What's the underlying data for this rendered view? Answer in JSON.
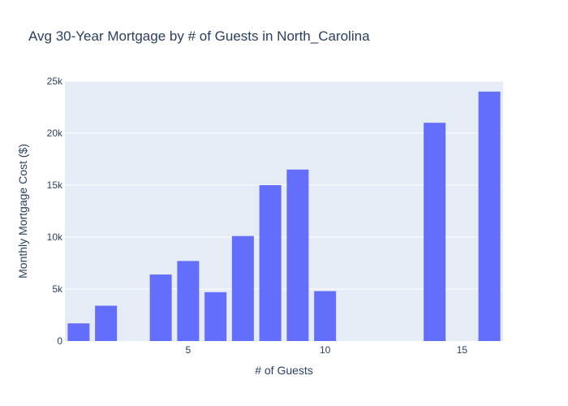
{
  "chart_data": {
    "type": "bar",
    "title": "Avg 30-Year Mortgage by # of Guests in North_Carolina",
    "xlabel": "# of Guests",
    "ylabel": "Monthly Mortgage Cost ($)",
    "x": [
      1,
      2,
      4,
      5,
      6,
      7,
      8,
      9,
      10,
      14,
      16
    ],
    "values": [
      1700,
      3400,
      6400,
      7700,
      4700,
      10100,
      15000,
      16500,
      4800,
      21000,
      24000
    ],
    "xlim": [
      0.5,
      16.5
    ],
    "ylim": [
      0,
      25000
    ],
    "xticks": [
      5,
      10,
      15
    ],
    "xtick_labels": [
      "5",
      "10",
      "15"
    ],
    "yticks": [
      0,
      5000,
      10000,
      15000,
      20000,
      25000
    ],
    "ytick_labels": [
      "0",
      "5k",
      "10k",
      "15k",
      "20k",
      "25k"
    ],
    "grid": true,
    "legend": false,
    "colors": {
      "bar": "#636efa",
      "plot_bg": "#e5ecf6",
      "grid": "#ffffff",
      "text": "#2a3f5f"
    }
  }
}
